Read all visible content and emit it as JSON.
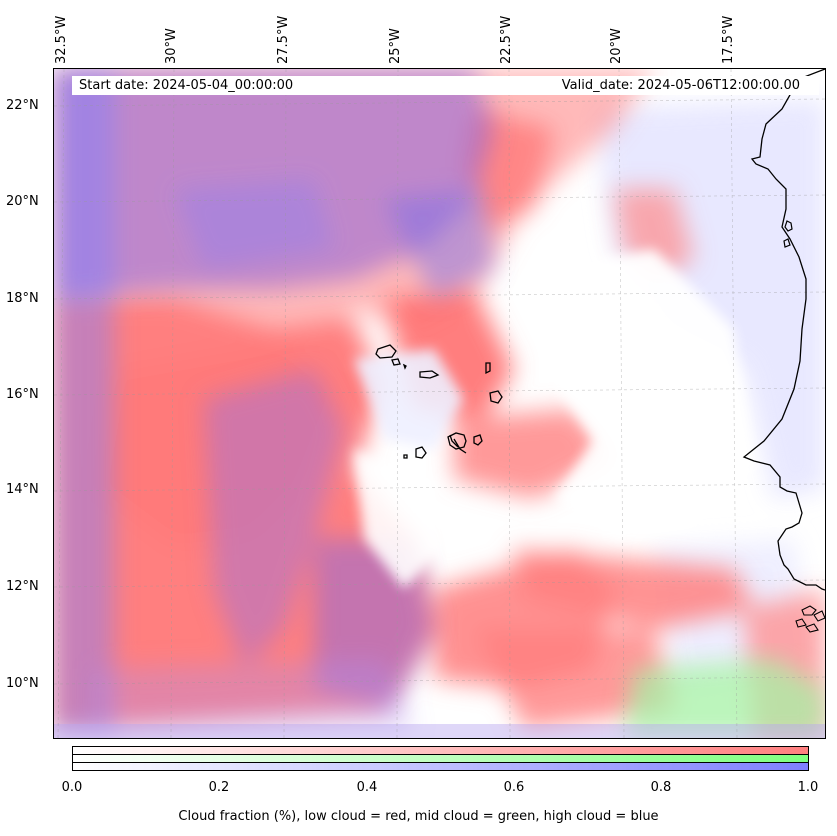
{
  "map": {
    "lon_labels": [
      "32.5°W",
      "30°W",
      "27.5°W",
      "25°W",
      "22.5°W",
      "20°W",
      "17.5°W"
    ],
    "lat_labels": [
      "22°N",
      "20°N",
      "18°N",
      "16°N",
      "14°N",
      "12°N",
      "10°N"
    ],
    "start_date": "Start date: 2024-05-04_00:00:00",
    "valid_date": "Valid_date: 2024-05-06T12:00:00.00",
    "colors": {
      "low_cloud": "#ff7f7f",
      "mid_cloud": "#7fff7f",
      "high_cloud": "#7f7fff",
      "mixed_low_high": "#9a5fc8",
      "coastline": "#000000"
    }
  },
  "colorbar": {
    "ticks": [
      "0.0",
      "0.2",
      "0.4",
      "0.6",
      "0.8",
      "1.0"
    ],
    "caption": "Cloud fraction (%), low cloud = red, mid cloud = green, high cloud = blue"
  }
}
